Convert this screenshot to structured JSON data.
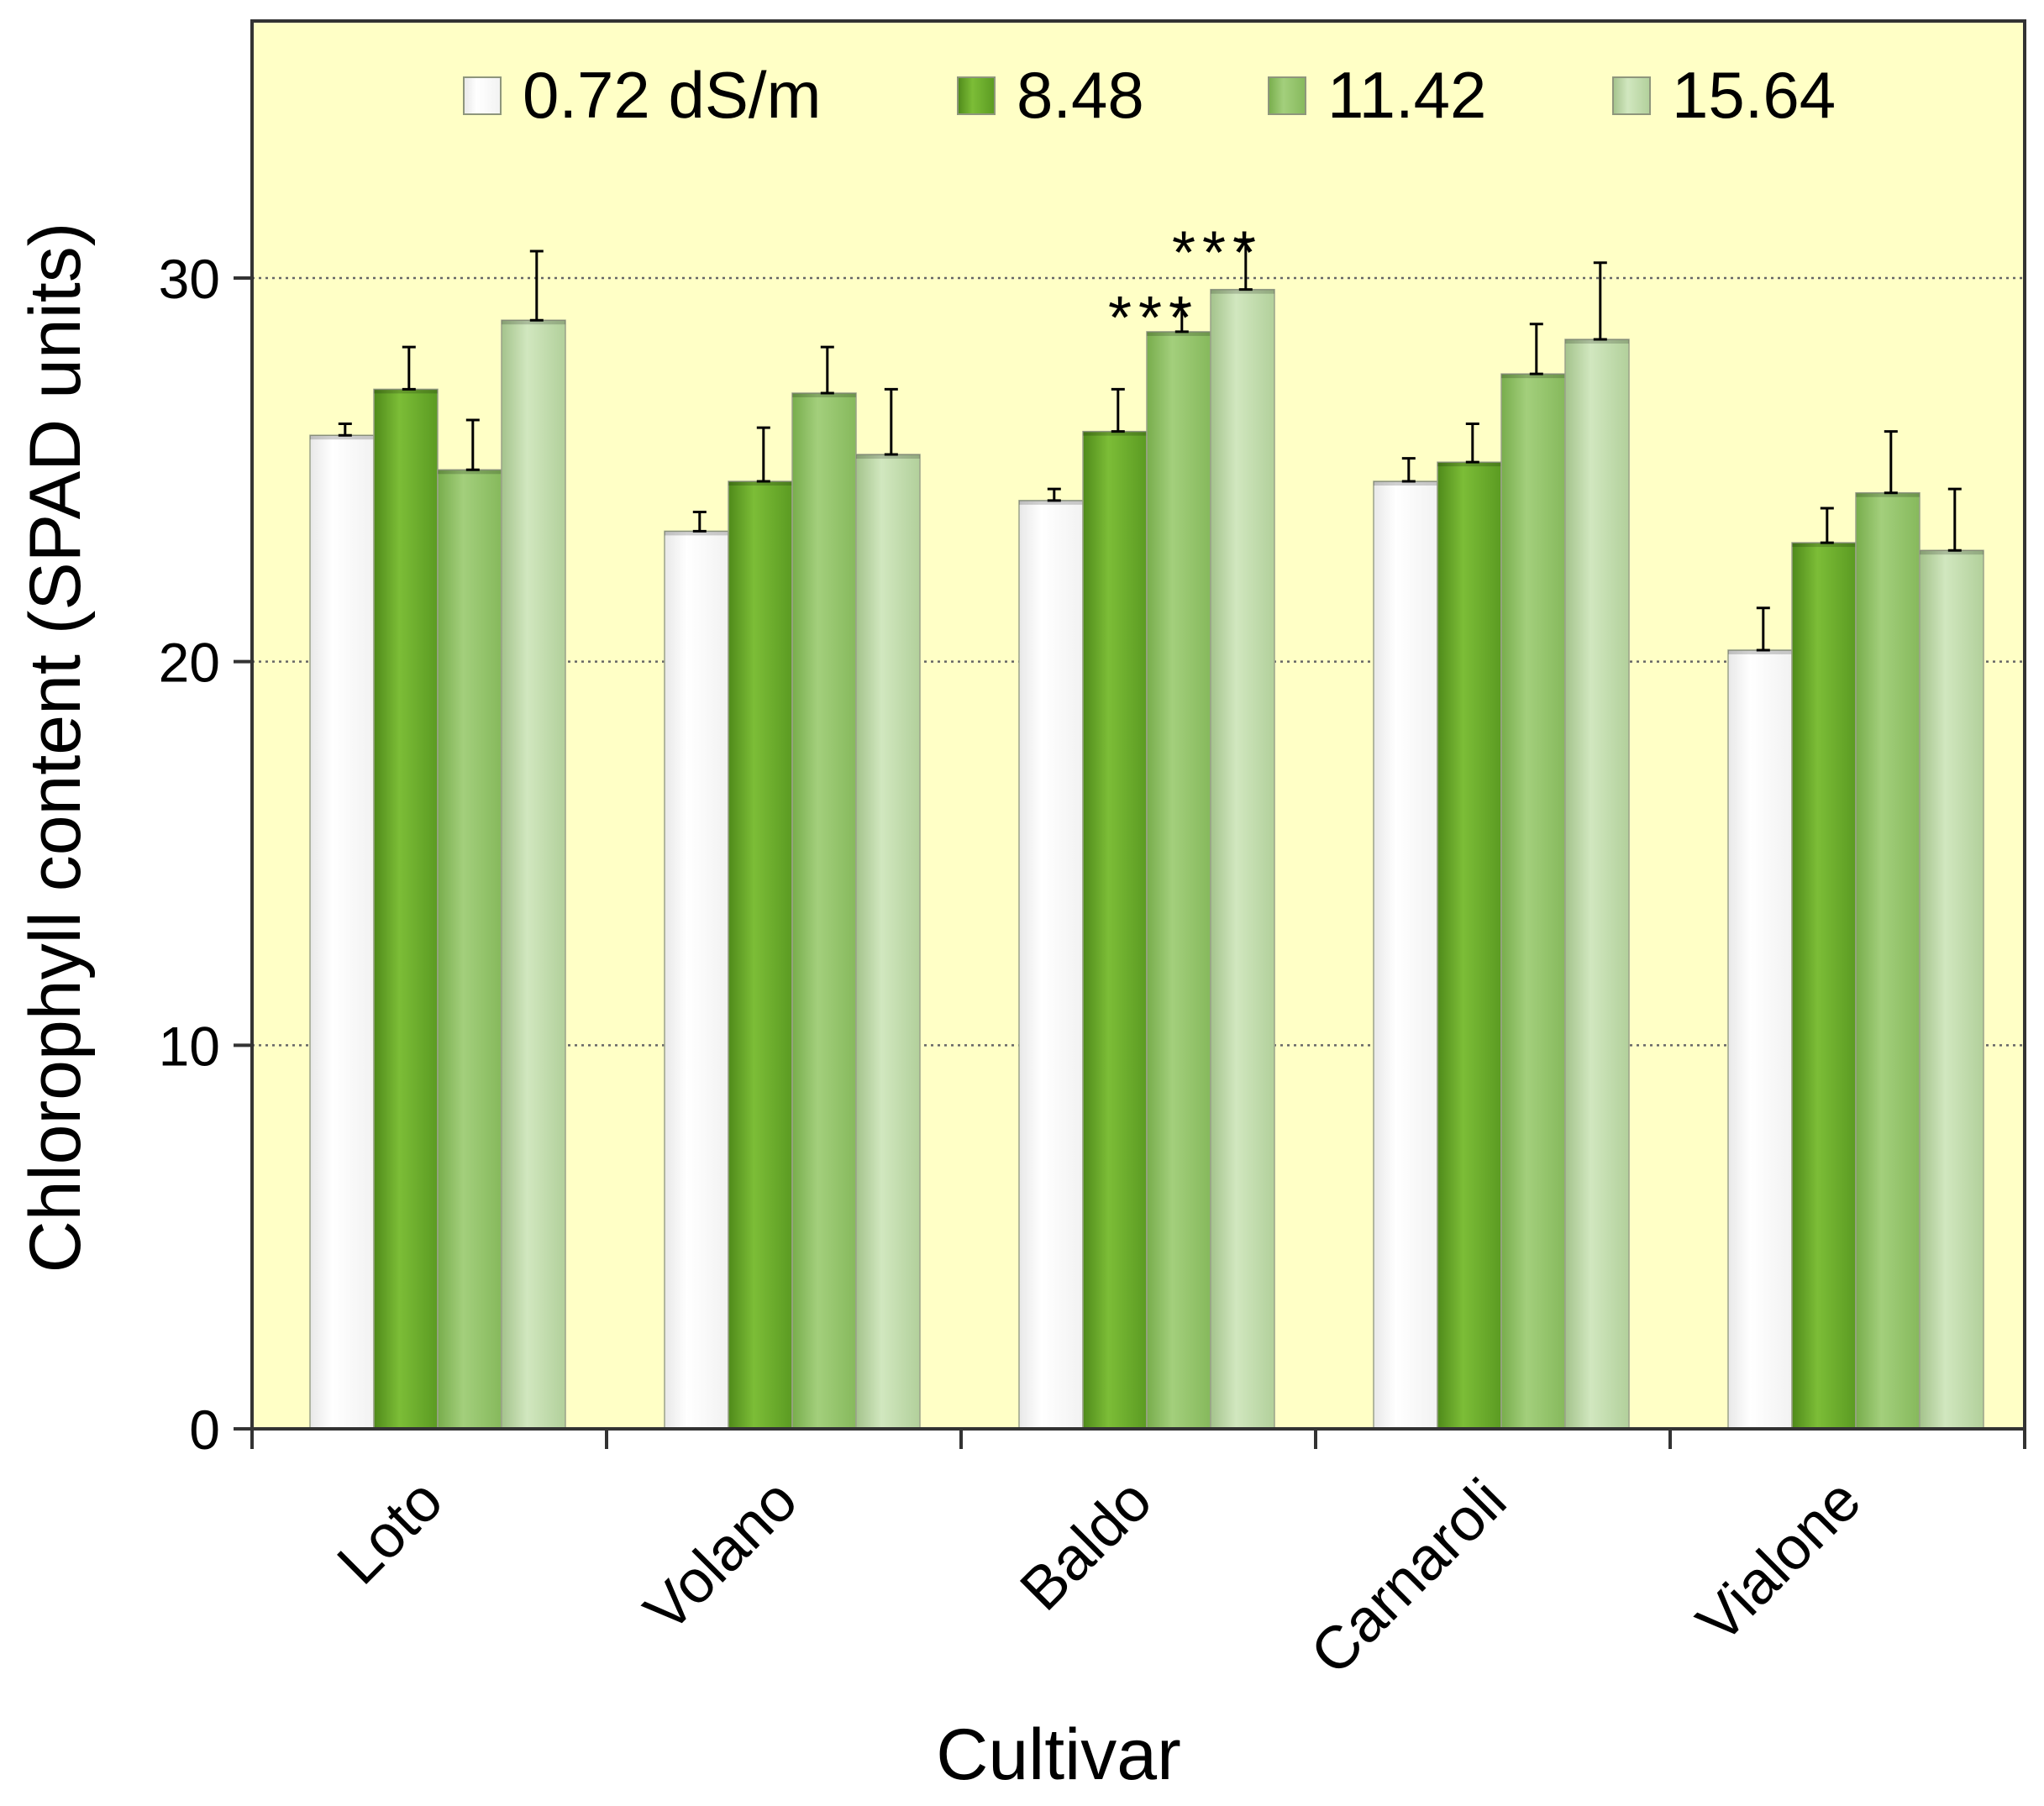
{
  "chart_data": {
    "type": "bar",
    "title": "",
    "xlabel": "Cultivar",
    "ylabel": "Chlorophyll content (SPAD units)",
    "ylim": [
      0,
      36.7
    ],
    "yticks": [
      "0",
      "10",
      "20",
      "30"
    ],
    "grid": "horizontal dotted at 10, 20, 30",
    "legend_position": "top",
    "categories": [
      "Loto",
      "Volano",
      "Baldo",
      "Carnaroli",
      "Vialone"
    ],
    "series": [
      {
        "name": "0.72 dS/m",
        "color": "#ffffff",
        "values": [
          25.9,
          23.4,
          24.2,
          24.7,
          20.3
        ],
        "errors": [
          0.3,
          0.5,
          0.3,
          0.6,
          1.1
        ]
      },
      {
        "name": "8.48",
        "color": "#6aa52a",
        "values": [
          27.1,
          24.7,
          26.0,
          25.2,
          23.1
        ],
        "errors": [
          1.1,
          1.4,
          1.1,
          1.0,
          0.9
        ]
      },
      {
        "name": "11.42",
        "color": "#8fc063",
        "values": [
          25.0,
          27.0,
          28.6,
          27.5,
          24.4
        ],
        "errors": [
          1.3,
          1.2,
          0.7,
          1.3,
          1.6
        ]
      },
      {
        "name": "15.64",
        "color": "#bcd9a6",
        "values": [
          28.9,
          25.4,
          29.7,
          28.4,
          22.9
        ],
        "errors": [
          1.8,
          1.7,
          1.3,
          2.0,
          1.6
        ]
      }
    ],
    "annotations": [
      {
        "text": "***",
        "category": "Baldo",
        "series": "11.42"
      },
      {
        "text": "***",
        "category": "Baldo",
        "series": "15.64"
      }
    ]
  }
}
